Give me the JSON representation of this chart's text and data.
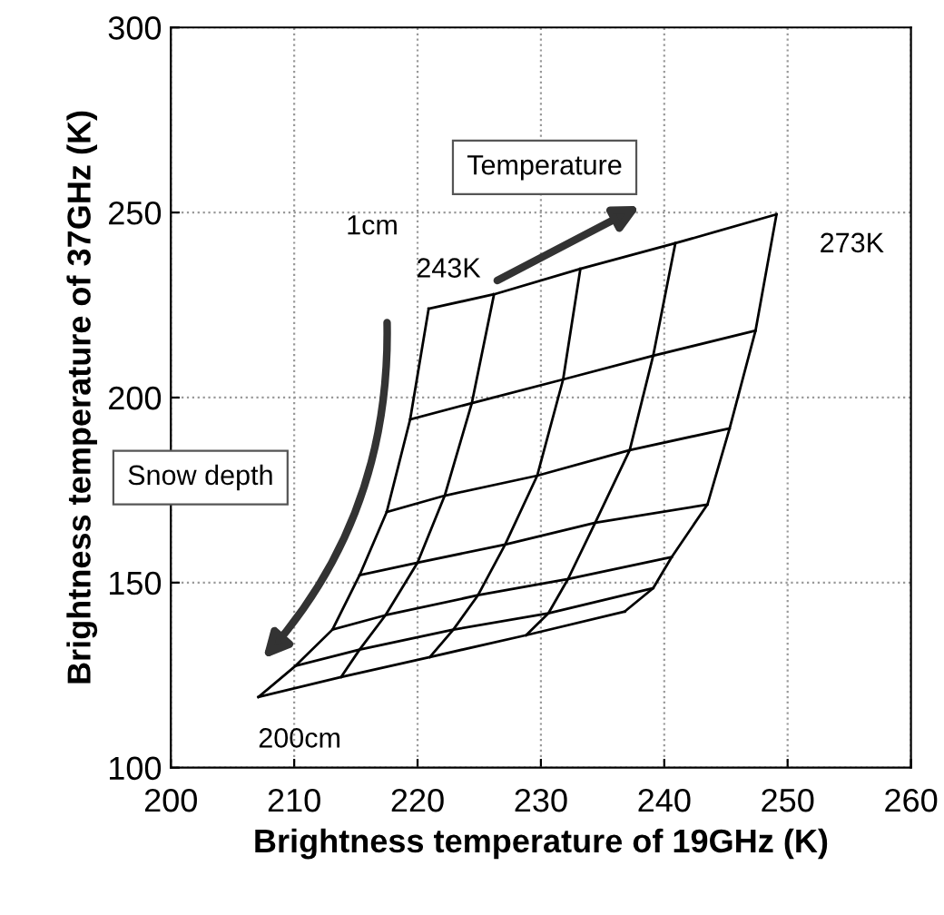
{
  "chart_data": {
    "type": "line",
    "xlabel": "Brightness temperature of 19GHz (K)",
    "ylabel": "Brightness temperature of 37GHz (K)",
    "xlim": [
      200,
      260
    ],
    "xticks": [
      200,
      210,
      220,
      230,
      240,
      250,
      260
    ],
    "ylim": [
      100,
      300
    ],
    "yticks": [
      100,
      150,
      200,
      250,
      300
    ],
    "grid": true,
    "marker": "none",
    "line_style": "solid",
    "series": [
      {
        "color": "#000000",
        "x": [
          220.9,
          226.2,
          233.2,
          240.9,
          249.1
        ],
        "values": [
          224.0,
          227.9,
          234.8,
          241.7,
          249.5
        ]
      },
      {
        "color": "#000000",
        "x": [
          219.4,
          224.4,
          231.8,
          239.1,
          247.4
        ],
        "values": [
          194.1,
          198.5,
          204.9,
          211.3,
          218.1
        ]
      },
      {
        "color": "#000000",
        "x": [
          217.5,
          222.2,
          229.7,
          237.2,
          245.3
        ],
        "values": [
          169.1,
          173.5,
          178.9,
          185.8,
          191.7
        ]
      },
      {
        "color": "#000000",
        "x": [
          215.3,
          220.0,
          227.1,
          234.4,
          243.5
        ],
        "values": [
          152.0,
          155.4,
          160.3,
          166.2,
          171.1
        ]
      },
      {
        "color": "#000000",
        "x": [
          213.1,
          217.4,
          224.9,
          232.2,
          240.6
        ],
        "values": [
          137.3,
          141.2,
          146.6,
          151.0,
          156.9
        ]
      },
      {
        "color": "#000000",
        "x": [
          210.1,
          215.3,
          222.9,
          230.6,
          239.1
        ],
        "values": [
          127.5,
          131.9,
          137.3,
          141.7,
          148.5
        ]
      },
      {
        "color": "#000000",
        "x": [
          207.1,
          213.8,
          221.0,
          228.8,
          236.8
        ],
        "values": [
          119.1,
          124.5,
          129.9,
          135.8,
          142.2
        ]
      },
      {
        "color": "#000000",
        "x": [
          220.9,
          219.4,
          217.5,
          215.3,
          213.1,
          210.1,
          207.1
        ],
        "values": [
          224.0,
          194.1,
          169.1,
          152.0,
          137.3,
          127.5,
          119.1
        ]
      },
      {
        "color": "#000000",
        "x": [
          226.2,
          224.4,
          222.2,
          220.0,
          217.4,
          215.3,
          213.8
        ],
        "values": [
          227.9,
          198.5,
          173.5,
          155.4,
          141.2,
          131.9,
          124.5
        ]
      },
      {
        "color": "#000000",
        "x": [
          233.2,
          231.8,
          229.7,
          227.1,
          224.9,
          222.9,
          221.0
        ],
        "values": [
          234.8,
          204.9,
          178.9,
          160.3,
          146.6,
          137.3,
          129.9
        ]
      },
      {
        "color": "#000000",
        "x": [
          240.9,
          239.1,
          237.2,
          234.4,
          232.2,
          230.6,
          228.8
        ],
        "values": [
          241.7,
          211.3,
          185.8,
          166.2,
          151.0,
          141.7,
          135.8
        ]
      },
      {
        "color": "#000000",
        "x": [
          249.1,
          247.4,
          245.3,
          243.5,
          240.6,
          239.1,
          236.8
        ],
        "values": [
          249.5,
          218.1,
          191.7,
          171.1,
          156.9,
          148.5,
          142.2
        ]
      }
    ],
    "annotations": [
      "Temperature",
      "Snow depth",
      "243K",
      "273K",
      "1cm",
      "200cm"
    ]
  }
}
